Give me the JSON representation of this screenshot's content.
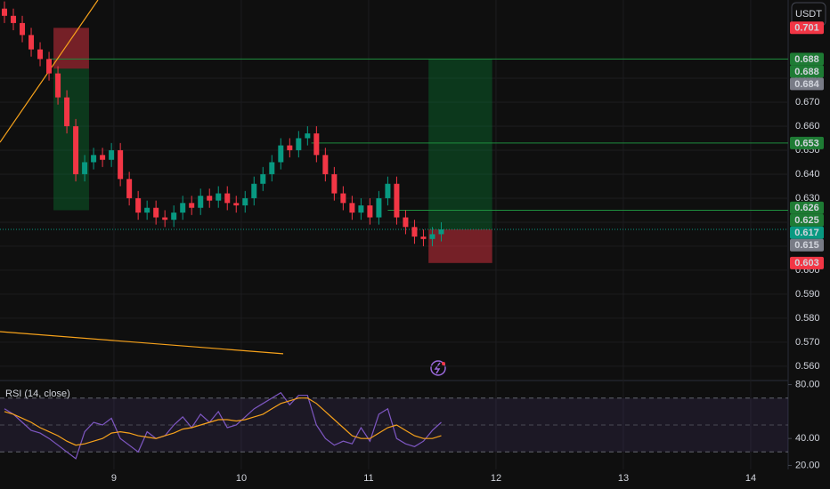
{
  "chart_data": {
    "type": "candlestick",
    "currency": "USDT",
    "indicator_label": "RSI (14, close)",
    "up_color": "#089981",
    "down_color": "#f23645",
    "xlim": [
      8.105,
      14.294
    ],
    "xticks": [
      9,
      10,
      11,
      12,
      13,
      14
    ],
    "ylim": [
      0.5544,
      0.7126
    ],
    "yticks": [
      {
        "value": 0.56,
        "label": "0.560"
      },
      {
        "value": 0.57,
        "label": "0.570"
      },
      {
        "value": 0.58,
        "label": "0.580"
      },
      {
        "value": 0.59,
        "label": "0.590"
      },
      {
        "value": 0.6,
        "label": "0.600"
      },
      {
        "value": 0.61,
        "label": "0.610"
      },
      {
        "value": 0.62,
        "label": "0.620"
      },
      {
        "value": 0.63,
        "label": "0.630"
      },
      {
        "value": 0.64,
        "label": "0.640"
      },
      {
        "value": 0.65,
        "label": "0.650"
      },
      {
        "value": 0.66,
        "label": "0.660"
      },
      {
        "value": 0.67,
        "label": "0.670"
      },
      {
        "value": 0.68,
        "label": "0.680"
      }
    ],
    "x": [
      8.14,
      8.21,
      8.28,
      8.35,
      8.42,
      8.49,
      8.56,
      8.63,
      8.7,
      8.77,
      8.84,
      8.91,
      8.98,
      9.05,
      9.12,
      9.19,
      9.26,
      9.33,
      9.4,
      9.47,
      9.54,
      9.61,
      9.68,
      9.75,
      9.82,
      9.89,
      9.96,
      10.03,
      10.1,
      10.17,
      10.24,
      10.31,
      10.38,
      10.45,
      10.52,
      10.59,
      10.66,
      10.73,
      10.8,
      10.87,
      10.94,
      11.01,
      11.08,
      11.15,
      11.22,
      11.29,
      11.36,
      11.43,
      11.5,
      11.57
    ],
    "open": [
      0.709,
      0.706,
      0.703,
      0.698,
      0.692,
      0.688,
      0.682,
      0.672,
      0.66,
      0.64,
      0.645,
      0.648,
      0.646,
      0.65,
      0.638,
      0.63,
      0.624,
      0.626,
      0.622,
      0.621,
      0.624,
      0.628,
      0.626,
      0.631,
      0.629,
      0.632,
      0.628,
      0.627,
      0.63,
      0.636,
      0.64,
      0.645,
      0.652,
      0.65,
      0.655,
      0.657,
      0.648,
      0.64,
      0.632,
      0.628,
      0.624,
      0.627,
      0.622,
      0.63,
      0.636,
      0.622,
      0.618,
      0.614,
      0.613,
      0.615
    ],
    "high": [
      0.712,
      0.709,
      0.706,
      0.701,
      0.695,
      0.691,
      0.685,
      0.675,
      0.663,
      0.648,
      0.651,
      0.651,
      0.653,
      0.653,
      0.641,
      0.633,
      0.629,
      0.629,
      0.625,
      0.627,
      0.631,
      0.631,
      0.634,
      0.634,
      0.635,
      0.635,
      0.631,
      0.633,
      0.639,
      0.643,
      0.648,
      0.655,
      0.655,
      0.658,
      0.66,
      0.66,
      0.651,
      0.643,
      0.635,
      0.631,
      0.63,
      0.63,
      0.633,
      0.639,
      0.639,
      0.625,
      0.621,
      0.617,
      0.618,
      0.62
    ],
    "low": [
      0.703,
      0.7,
      0.695,
      0.689,
      0.685,
      0.679,
      0.669,
      0.657,
      0.637,
      0.637,
      0.642,
      0.643,
      0.643,
      0.635,
      0.627,
      0.621,
      0.621,
      0.619,
      0.618,
      0.618,
      0.621,
      0.623,
      0.623,
      0.626,
      0.626,
      0.625,
      0.624,
      0.624,
      0.627,
      0.633,
      0.637,
      0.642,
      0.647,
      0.647,
      0.652,
      0.645,
      0.637,
      0.629,
      0.625,
      0.621,
      0.621,
      0.619,
      0.619,
      0.627,
      0.619,
      0.615,
      0.611,
      0.61,
      0.61,
      0.612
    ],
    "close": [
      0.706,
      0.703,
      0.698,
      0.692,
      0.688,
      0.682,
      0.672,
      0.66,
      0.64,
      0.645,
      0.648,
      0.646,
      0.65,
      0.638,
      0.63,
      0.624,
      0.626,
      0.622,
      0.621,
      0.624,
      0.628,
      0.626,
      0.631,
      0.629,
      0.632,
      0.628,
      0.627,
      0.63,
      0.636,
      0.64,
      0.645,
      0.652,
      0.65,
      0.655,
      0.657,
      0.648,
      0.64,
      0.632,
      0.628,
      0.624,
      0.627,
      0.622,
      0.63,
      0.636,
      0.622,
      0.618,
      0.614,
      0.613,
      0.615,
      0.617
    ],
    "hlines": [
      {
        "price": 0.688,
        "from": 8.49
      },
      {
        "price": 0.653,
        "from": 10.55
      },
      {
        "price": 0.625,
        "from": 11.15
      }
    ],
    "last_price": 0.617,
    "trendlines": [
      {
        "x": [
          8.105,
          8.874
        ],
        "y": [
          0.6533,
          0.7126
        ]
      },
      {
        "x": [
          8.105,
          10.329
        ],
        "y": [
          0.5744,
          0.5652
        ]
      }
    ],
    "positions": [
      {
        "x": [
          8.525,
          8.804
        ],
        "entry": 0.684,
        "stop": 0.701,
        "target": 0.625
      },
      {
        "x": [
          11.47,
          11.97
        ],
        "entry": 0.617,
        "stop": 0.603,
        "target": 0.688
      }
    ],
    "price_labels": [
      {
        "value": 0.701,
        "color": "#f23645"
      },
      {
        "value": 0.688,
        "color": "#1e7b34"
      },
      {
        "value": 0.688,
        "color": "#1e7b34"
      },
      {
        "value": 0.684,
        "color": "#787b86"
      },
      {
        "value": 0.653,
        "color": "#1e7b34"
      },
      {
        "value": 0.626,
        "color": "#1e7b34"
      },
      {
        "value": 0.625,
        "color": "#1e7b34"
      },
      {
        "value": 0.617,
        "color": "#089981"
      },
      {
        "value": 0.615,
        "color": "#787b86"
      },
      {
        "value": 0.603,
        "color": "#f23645"
      }
    ],
    "rsi_ylim": [
      17,
      85
    ],
    "rsi_yticks": [
      {
        "value": 20,
        "label": "20.00"
      },
      {
        "value": 40,
        "label": "40.00"
      },
      {
        "value": 80,
        "label": "80.00"
      }
    ],
    "rsi_levels": [
      70,
      50,
      30
    ],
    "rsi": [
      62,
      58,
      52,
      46,
      44,
      40,
      35,
      30,
      25,
      45,
      52,
      50,
      55,
      40,
      35,
      30,
      45,
      40,
      42,
      50,
      56,
      48,
      58,
      52,
      60,
      48,
      50,
      56,
      62,
      66,
      70,
      74,
      65,
      72,
      72,
      50,
      40,
      35,
      38,
      36,
      48,
      38,
      58,
      62,
      40,
      36,
      34,
      38,
      46,
      52
    ],
    "rsi_color": "#7e57c2",
    "rsi_ma": [
      60,
      58,
      55,
      52,
      48,
      45,
      42,
      38,
      35,
      36,
      38,
      40,
      44,
      45,
      44,
      42,
      41,
      40,
      42,
      44,
      47,
      48,
      50,
      52,
      54,
      54,
      53,
      54,
      56,
      58,
      62,
      66,
      68,
      70,
      70,
      66,
      60,
      54,
      48,
      42,
      40,
      40,
      44,
      48,
      50,
      46,
      42,
      40,
      40,
      42
    ],
    "rsi_ma_color": "#f7a21b"
  }
}
